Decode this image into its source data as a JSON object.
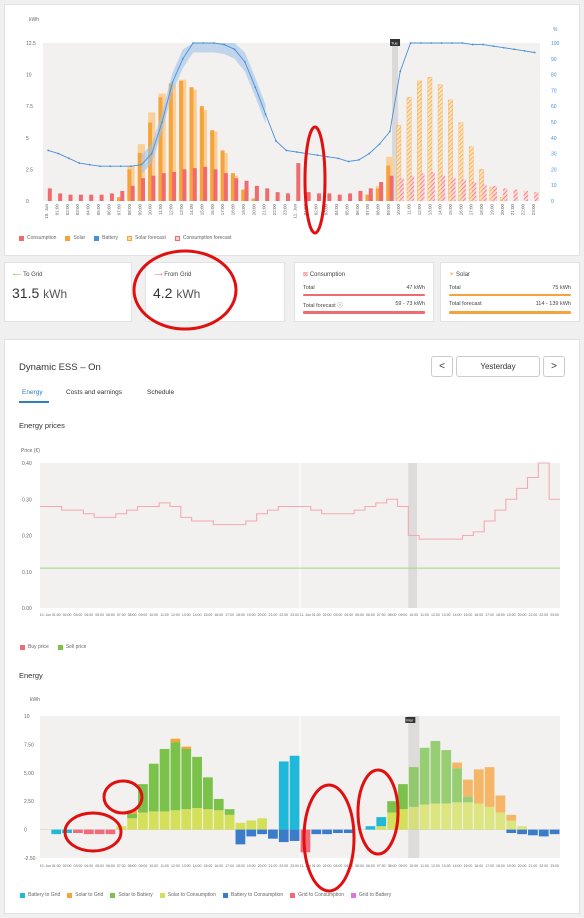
{
  "top_chart": {
    "left_unit": "kWh",
    "right_unit": "%",
    "left_ticks": [
      "12.5",
      "10",
      "7.5",
      "5",
      "2.5",
      "0"
    ],
    "right_ticks": [
      "100",
      "90",
      "80",
      "70",
      "60",
      "50",
      "40",
      "30",
      "20",
      "10",
      "0"
    ],
    "x_labels": [
      "10. Jun",
      "01:00",
      "02:00",
      "03:00",
      "04:00",
      "05:00",
      "06:00",
      "07:00",
      "08:00",
      "09:00",
      "10:00",
      "11:00",
      "12:00",
      "13:00",
      "14:00",
      "15:00",
      "16:00",
      "17:00",
      "18:00",
      "19:00",
      "20:00",
      "21:00",
      "22:00",
      "23:00",
      "11. Jun",
      "01:00",
      "02:00",
      "03:00",
      "04:00",
      "05:00",
      "06:00",
      "07:00",
      "08:00",
      "09:00",
      "10:00",
      "11:00",
      "12:00",
      "13:00",
      "14:00",
      "15:00",
      "16:00",
      "17:00",
      "18:00",
      "19:00",
      "20:00",
      "21:00",
      "22:00",
      "23:00"
    ],
    "now_marker": "Tue",
    "legend": [
      "Consumption",
      "Solar",
      "Battery",
      "Solar forecast",
      "Consumption forecast"
    ]
  },
  "chart_data": [
    {
      "type": "bar",
      "categories_count": 48,
      "series": [
        {
          "name": "Consumption",
          "values": [
            1.0,
            0.6,
            0.5,
            0.5,
            0.5,
            0.5,
            0.6,
            0.8,
            1.2,
            1.8,
            2.0,
            2.2,
            2.3,
            2.5,
            2.6,
            2.7,
            2.5,
            2.2,
            1.8,
            1.6,
            1.2,
            1.0,
            0.7,
            0.6,
            3.0,
            0.7,
            0.6,
            0.6,
            0.5,
            0.6,
            0.8,
            1.0,
            1.5,
            2.0,
            0,
            0,
            0,
            0,
            0,
            0,
            0,
            0,
            0,
            0,
            0,
            0,
            0,
            0
          ]
        },
        {
          "name": "Solar",
          "values": [
            0,
            0,
            0,
            0,
            0,
            0,
            0,
            0.3,
            2.5,
            3.8,
            6.2,
            8.2,
            9.3,
            9.5,
            9.0,
            7.5,
            5.6,
            4.0,
            2.2,
            0.9,
            0.2,
            0,
            0,
            0,
            0,
            0,
            0,
            0,
            0,
            0,
            0,
            0.5,
            1.0,
            2.8,
            0,
            0,
            0,
            0,
            0,
            0,
            0,
            0,
            0,
            0,
            0,
            0,
            0,
            0
          ]
        },
        {
          "name": "Solar forecast",
          "values": [
            0,
            0,
            0,
            0,
            0,
            0,
            0,
            0.3,
            2.8,
            4.5,
            7.0,
            8.5,
            9.2,
            9.6,
            8.8,
            7.2,
            5.5,
            3.8,
            2.0,
            0.8,
            0.1,
            0,
            0,
            0,
            0,
            0,
            0,
            0,
            0,
            0,
            0,
            0.5,
            1.2,
            3.5,
            6.0,
            8.2,
            9.5,
            9.8,
            9.2,
            8.0,
            6.2,
            4.3,
            2.5,
            1.1,
            0.3,
            0,
            0,
            0
          ]
        },
        {
          "name": "Consumption forecast",
          "values": [
            0,
            0,
            0,
            0,
            0,
            0,
            0,
            0,
            0,
            0,
            0,
            0,
            0,
            0,
            0,
            0,
            0,
            0,
            0,
            0,
            0,
            0,
            0,
            0,
            0,
            0,
            0,
            0,
            0,
            0,
            0,
            0,
            0,
            0,
            1.8,
            2.0,
            2.2,
            2.3,
            2.0,
            1.8,
            1.7,
            1.5,
            1.3,
            1.2,
            1.0,
            0.9,
            0.8,
            0.7
          ]
        }
      ],
      "ylim": [
        0,
        12.5
      ]
    },
    {
      "type": "line",
      "series": [
        {
          "name": "Battery",
          "values": [
            32,
            30,
            27,
            24,
            23,
            22,
            22,
            22,
            22,
            23,
            30,
            50,
            75,
            90,
            100,
            100,
            100,
            99,
            96,
            88,
            72,
            55,
            38,
            32,
            31,
            30,
            29,
            28,
            27,
            25,
            26,
            30,
            36,
            44,
            82,
            100,
            100,
            100,
            100,
            100,
            100,
            99,
            99,
            98,
            97,
            96,
            95,
            94
          ]
        }
      ],
      "ylim": [
        0,
        100
      ]
    },
    {
      "type": "line",
      "title": "Energy prices",
      "ylabel": "Price (€)",
      "ylim": [
        0,
        0.4
      ],
      "series": [
        {
          "name": "Buy price",
          "values": [
            0.28,
            0.28,
            0.27,
            0.27,
            0.26,
            0.25,
            0.25,
            0.26,
            0.27,
            0.28,
            0.28,
            0.29,
            0.28,
            0.25,
            0.24,
            0.24,
            0.23,
            0.23,
            0.23,
            0.24,
            0.26,
            0.27,
            0.28,
            0.28,
            0.28,
            0.27,
            0.26,
            0.26,
            0.26,
            0.27,
            0.28,
            0.29,
            0.3,
            0.28,
            0.2,
            0.19,
            0.19,
            0.19,
            0.19,
            0.2,
            0.21,
            0.24,
            0.27,
            0.3,
            0.33,
            0.36,
            0.4,
            0.3
          ]
        },
        {
          "name": "Sell price",
          "values": [
            0.11,
            0.11,
            0.11,
            0.11,
            0.11,
            0.11,
            0.11,
            0.11,
            0.11,
            0.11,
            0.11,
            0.11,
            0.11,
            0.11,
            0.11,
            0.11,
            0.11,
            0.11,
            0.11,
            0.11,
            0.11,
            0.11,
            0.11,
            0.11,
            0.11,
            0.11,
            0.11,
            0.11,
            0.11,
            0.11,
            0.11,
            0.11,
            0.11,
            0.11,
            0.11,
            0.11,
            0.11,
            0.11,
            0.11,
            0.11,
            0.11,
            0.11,
            0.11,
            0.11,
            0.11,
            0.11,
            0.11,
            0.11
          ]
        }
      ]
    },
    {
      "type": "bar",
      "title": "Energy",
      "ylabel": "kWh",
      "ylim": [
        -2.5,
        10
      ],
      "series": [
        {
          "name": "Battery to Grid",
          "values": [
            0,
            -0.4,
            -0.3,
            0,
            0,
            0,
            0,
            0,
            0,
            0,
            0,
            0,
            0,
            0,
            0,
            0,
            0,
            0,
            0,
            0,
            0,
            0,
            6.0,
            6.5,
            0,
            0,
            0,
            0,
            0,
            0,
            0.3,
            0.8,
            0,
            0,
            0,
            0,
            0,
            0,
            0,
            0,
            0,
            0,
            0,
            0,
            0,
            0,
            0,
            0
          ]
        },
        {
          "name": "Solar to Grid",
          "values": [
            0,
            0,
            0,
            0,
            0,
            0,
            0,
            0,
            0.3,
            0,
            0,
            0,
            0.3,
            0.2,
            0,
            0,
            0,
            0,
            0,
            0,
            0,
            0,
            0,
            0,
            0,
            0,
            0,
            0,
            0,
            0,
            0,
            0,
            0,
            0,
            0,
            0,
            0,
            0,
            0.5,
            1.5,
            3.0,
            3.5,
            1.5,
            0.5,
            0,
            0,
            0,
            0
          ]
        },
        {
          "name": "Solar to Battery",
          "values": [
            0,
            0,
            0,
            0,
            0,
            0,
            0,
            0,
            0.4,
            2.5,
            4.2,
            5.5,
            6.0,
            5.3,
            4.5,
            2.8,
            1.0,
            0.5,
            0,
            0,
            0,
            0,
            0,
            0,
            0,
            0,
            0,
            0,
            0,
            0,
            0,
            0,
            1.0,
            2.2,
            3.5,
            5.0,
            5.5,
            4.7,
            3.0,
            0.5,
            0,
            0,
            0,
            0,
            0,
            0,
            0,
            0
          ]
        },
        {
          "name": "Solar to Consumption",
          "values": [
            0,
            0,
            0,
            0,
            0,
            0,
            0,
            0.3,
            1.0,
            1.5,
            1.6,
            1.6,
            1.7,
            1.8,
            1.9,
            1.8,
            1.7,
            1.3,
            0.6,
            0.8,
            1.0,
            0,
            0,
            0,
            0,
            0,
            0,
            0,
            0,
            0,
            0,
            0.3,
            1.5,
            1.8,
            2.0,
            2.2,
            2.3,
            2.3,
            2.4,
            2.4,
            2.3,
            2.0,
            1.5,
            0.8,
            0.3,
            0,
            0,
            0
          ]
        },
        {
          "name": "Battery to Consumption",
          "values": [
            0,
            0,
            0,
            0,
            0,
            0,
            0,
            0,
            0,
            0,
            0,
            0,
            0,
            0,
            0,
            0,
            0,
            0,
            -1.3,
            -0.6,
            -0.4,
            -0.8,
            -1.1,
            -1.0,
            0,
            -0.4,
            -0.4,
            -0.3,
            -0.3,
            0,
            0,
            0,
            0,
            0,
            0,
            0,
            0,
            0,
            0,
            0,
            0,
            0,
            0,
            -0.3,
            -0.4,
            -0.5,
            -0.6,
            -0.4
          ]
        },
        {
          "name": "Grid to Consumption",
          "values": [
            0,
            0,
            0,
            -0.3,
            -0.4,
            -0.4,
            -0.4,
            0,
            0,
            0,
            0,
            0,
            0,
            0,
            0,
            0,
            0,
            0,
            0,
            0,
            0,
            0,
            0,
            0,
            -2.0,
            0,
            0,
            0,
            0,
            0,
            0,
            0,
            0,
            0,
            0,
            0,
            0,
            0,
            0,
            0,
            0,
            0,
            0,
            0,
            0,
            0,
            0,
            0
          ]
        },
        {
          "name": "Grid to Battery",
          "values": [
            0,
            0,
            0,
            0,
            0,
            0,
            0,
            0,
            0,
            0,
            0,
            0,
            0,
            0,
            0,
            0,
            0,
            0,
            0,
            0,
            0,
            0,
            0,
            0,
            0,
            0,
            0,
            0,
            0,
            0,
            0,
            0,
            0,
            0,
            0,
            0,
            0,
            0,
            0,
            0,
            0,
            0,
            0,
            0,
            0,
            0,
            0,
            0
          ]
        }
      ]
    }
  ],
  "stats": {
    "to_grid": {
      "label": "To Grid",
      "value": "31.5",
      "unit": "kWh"
    },
    "from_grid": {
      "label": "From Grid",
      "value": "4.2",
      "unit": "kWh"
    },
    "consumption": {
      "label": "Consumption",
      "total_label": "Total",
      "total_value": "47 kWh",
      "forecast_label": "Total forecast",
      "forecast_value": "59 - 73 kWh"
    },
    "solar": {
      "label": "Solar",
      "total_label": "Total",
      "total_value": "75 kWh",
      "forecast_label": "Total forecast",
      "forecast_value": "114 - 139 kWh"
    }
  },
  "ess": {
    "title": "Dynamic ESS – On",
    "prev": "<",
    "next": ">",
    "period": "Yesterday",
    "tabs": [
      "Energy",
      "Costs and earnings",
      "Schedule"
    ],
    "prices_title": "Energy prices",
    "prices_ylabel": "Price (€)",
    "prices_ticks": [
      "0.40",
      "0.30",
      "0.20",
      "0.10",
      "0.00"
    ],
    "prices_legend": [
      "Buy price",
      "Sell price"
    ],
    "energy_title": "Energy",
    "energy_ylabel": "kWh",
    "energy_ticks": [
      "10",
      "7.50",
      "5.00",
      "2.50",
      "0",
      "-2.50"
    ],
    "energy_now": "Mar",
    "energy_legend": [
      "Battery to Grid",
      "Solar to Grid",
      "Solar to Battery",
      "Solar to Consumption",
      "Battery to Consumption",
      "Grid to Consumption",
      "Grid to Battery"
    ]
  },
  "colors": {
    "consumption": "#f06a6e",
    "solar": "#f5a33a",
    "battery": "#4a8fd6",
    "buy": "#f0a0a8",
    "sell": "#8fd06a",
    "battery_to_grid": "#1fb8d8",
    "solar_to_grid": "#f5a33a",
    "solar_to_battery": "#7ac24a",
    "solar_to_consumption": "#d4e05a",
    "battery_to_consumption": "#3a7cc9",
    "grid_to_consumption": "#f06a7a",
    "grid_to_battery": "#d879d8",
    "annotation": "#e01010"
  }
}
